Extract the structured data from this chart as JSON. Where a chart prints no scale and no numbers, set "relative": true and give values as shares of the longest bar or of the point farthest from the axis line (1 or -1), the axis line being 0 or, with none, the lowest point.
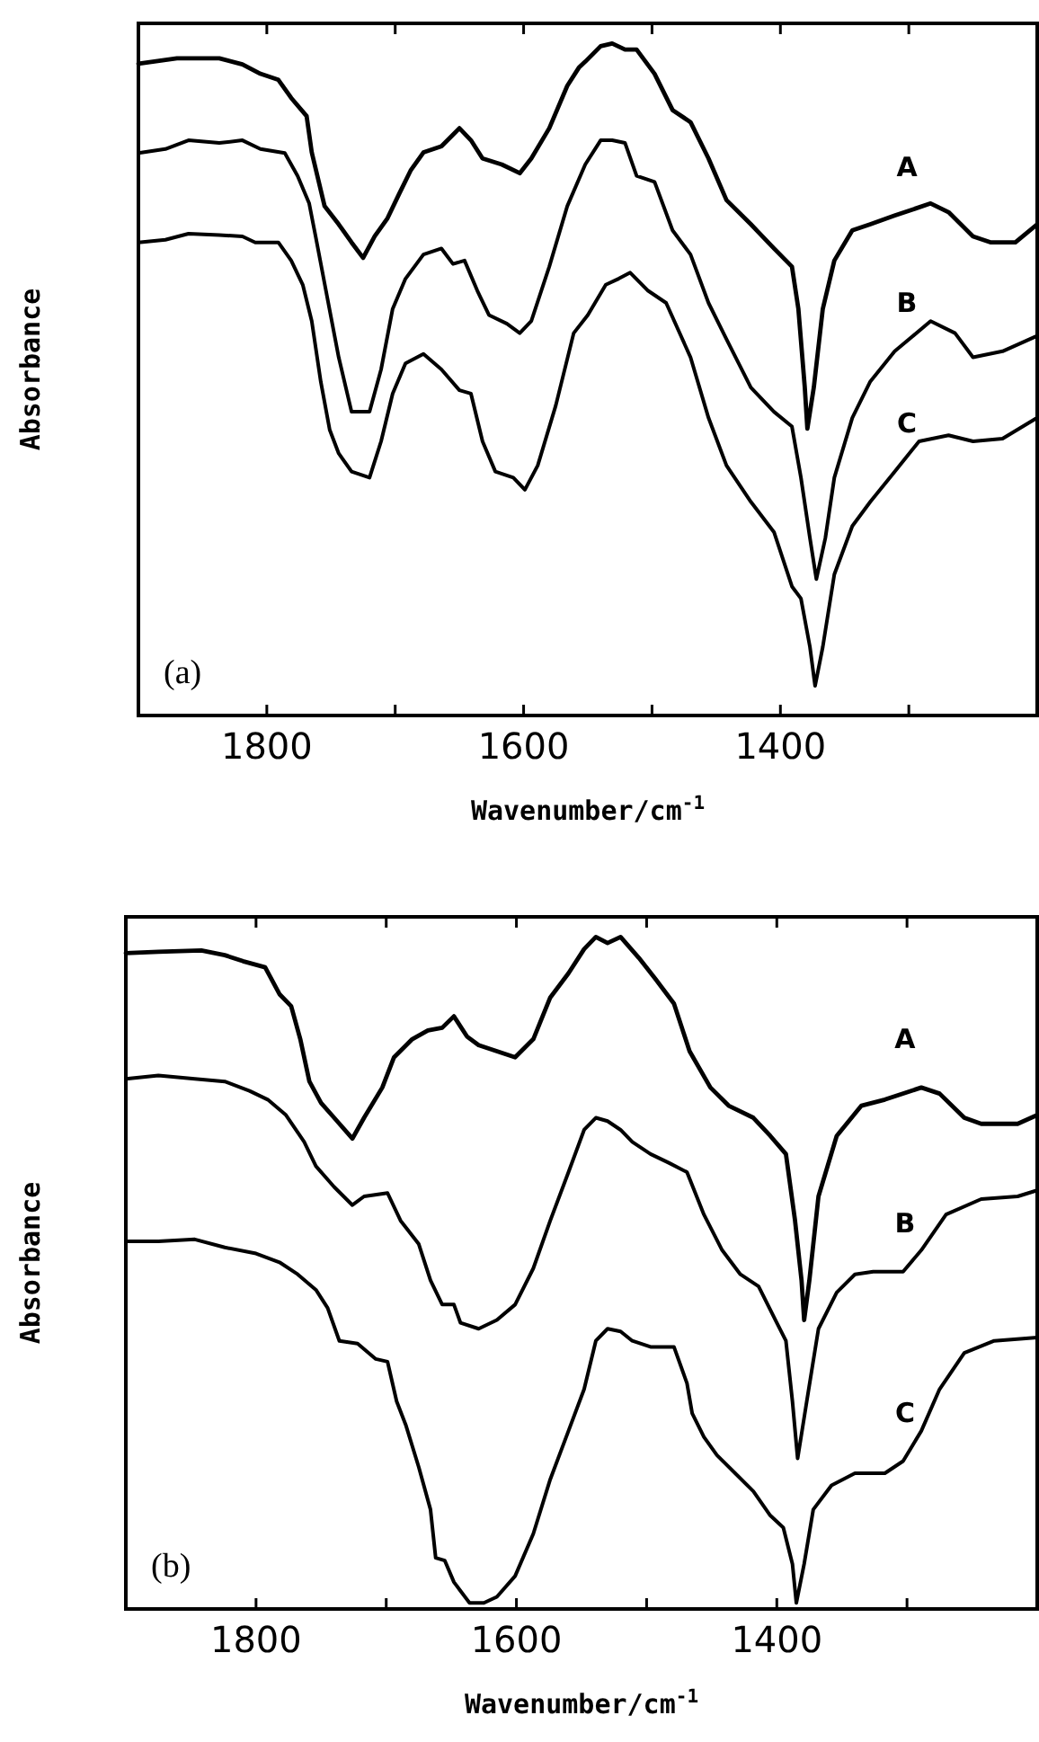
{
  "chart_data": [
    {
      "type": "line",
      "title": "(a)",
      "xlabel": "Wavenumber/cm$^{-1}$",
      "ylabel": "Absorbance",
      "relative": true,
      "xlim": [
        1900,
        1200
      ],
      "xticks": [
        1800,
        {
          "value": 1700,
          "label": null
        },
        1600,
        {
          "value": 1500,
          "label": null
        },
        1400,
        {
          "value": 1300,
          "label": null
        }
      ],
      "grid": false,
      "line_style": "solid",
      "marker": "none",
      "series": [
        {
          "name": "A",
          "color": "#000000",
          "x": [
            1900,
            1870,
            1837,
            1819,
            1805,
            1791,
            1781,
            1769,
            1765,
            1755,
            1744,
            1734,
            1725,
            1716,
            1706,
            1697,
            1688,
            1678,
            1664,
            1650,
            1641,
            1632,
            1617,
            1603,
            1594,
            1580,
            1566,
            1557,
            1552,
            1540,
            1531,
            1521,
            1512,
            1498,
            1484,
            1470,
            1456,
            1442,
            1423,
            1405,
            1391,
            1386,
            1381,
            1379,
            1374,
            1367,
            1358,
            1344,
            1330,
            1311,
            1283,
            1269,
            1250,
            1236,
            1217,
            1200
          ],
          "values": [
            0.97,
            0.978,
            0.978,
            0.969,
            0.955,
            0.946,
            0.919,
            0.892,
            0.838,
            0.758,
            0.731,
            0.704,
            0.681,
            0.713,
            0.74,
            0.776,
            0.811,
            0.838,
            0.847,
            0.874,
            0.856,
            0.829,
            0.82,
            0.807,
            0.829,
            0.874,
            0.937,
            0.964,
            0.973,
            0.996,
            1.0,
            0.991,
            0.991,
            0.955,
            0.901,
            0.883,
            0.829,
            0.767,
            0.731,
            0.695,
            0.668,
            0.605,
            0.488,
            0.427,
            0.488,
            0.605,
            0.677,
            0.722,
            0.731,
            0.744,
            0.762,
            0.749,
            0.713,
            0.704,
            0.704,
            0.731
          ]
        },
        {
          "name": "B",
          "color": "#000000",
          "x": [
            1900,
            1879,
            1861,
            1837,
            1819,
            1805,
            1786,
            1776,
            1767,
            1762,
            1753,
            1744,
            1734,
            1720,
            1711,
            1702,
            1692,
            1678,
            1664,
            1655,
            1646,
            1636,
            1627,
            1613,
            1603,
            1594,
            1580,
            1566,
            1552,
            1540,
            1531,
            1521,
            1512,
            1498,
            1484,
            1470,
            1456,
            1442,
            1423,
            1405,
            1391,
            1384,
            1377,
            1372,
            1365,
            1358,
            1344,
            1330,
            1311,
            1283,
            1264,
            1250,
            1227,
            1200
          ],
          "values": [
            0.837,
            0.843,
            0.856,
            0.852,
            0.856,
            0.843,
            0.837,
            0.803,
            0.762,
            0.713,
            0.623,
            0.533,
            0.452,
            0.452,
            0.515,
            0.605,
            0.65,
            0.686,
            0.695,
            0.672,
            0.677,
            0.632,
            0.596,
            0.583,
            0.569,
            0.587,
            0.668,
            0.758,
            0.82,
            0.856,
            0.856,
            0.852,
            0.803,
            0.794,
            0.722,
            0.686,
            0.614,
            0.56,
            0.488,
            0.452,
            0.43,
            0.354,
            0.264,
            0.203,
            0.264,
            0.354,
            0.443,
            0.497,
            0.542,
            0.587,
            0.569,
            0.533,
            0.542,
            0.565
          ]
        },
        {
          "name": "C",
          "color": "#000000",
          "x": [
            1900,
            1879,
            1861,
            1837,
            1819,
            1809,
            1791,
            1781,
            1772,
            1765,
            1758,
            1751,
            1744,
            1734,
            1720,
            1711,
            1702,
            1692,
            1678,
            1664,
            1650,
            1641,
            1632,
            1622,
            1608,
            1599,
            1589,
            1575,
            1561,
            1550,
            1536,
            1526,
            1517,
            1503,
            1489,
            1470,
            1456,
            1442,
            1423,
            1405,
            1391,
            1384,
            1377,
            1373,
            1367,
            1358,
            1344,
            1330,
            1311,
            1292,
            1269,
            1250,
            1227,
            1200
          ],
          "values": [
            0.704,
            0.708,
            0.717,
            0.715,
            0.713,
            0.704,
            0.704,
            0.677,
            0.641,
            0.587,
            0.497,
            0.425,
            0.39,
            0.363,
            0.354,
            0.408,
            0.479,
            0.524,
            0.538,
            0.515,
            0.484,
            0.479,
            0.408,
            0.363,
            0.354,
            0.336,
            0.372,
            0.461,
            0.569,
            0.596,
            0.641,
            0.65,
            0.659,
            0.632,
            0.614,
            0.533,
            0.443,
            0.372,
            0.318,
            0.273,
            0.192,
            0.174,
            0.102,
            0.044,
            0.102,
            0.21,
            0.282,
            0.318,
            0.363,
            0.408,
            0.417,
            0.408,
            0.412,
            0.443
          ]
        }
      ]
    },
    {
      "type": "line",
      "title": "(b)",
      "xlabel": "Wavenumber/cm$^{-1}$",
      "ylabel": "Absorbance",
      "relative": true,
      "xlim": [
        1900,
        1200
      ],
      "xticks": [
        1800,
        {
          "value": 1700,
          "label": null
        },
        1600,
        {
          "value": 1500,
          "label": null
        },
        1400,
        {
          "value": 1300,
          "label": null
        }
      ],
      "grid": false,
      "line_style": "solid",
      "marker": "none",
      "series": [
        {
          "name": "A",
          "color": "#000000",
          "x": [
            1900,
            1875,
            1842,
            1824,
            1810,
            1793,
            1782,
            1773,
            1766,
            1759,
            1750,
            1740,
            1726,
            1717,
            1703,
            1694,
            1680,
            1668,
            1657,
            1648,
            1638,
            1629,
            1615,
            1601,
            1587,
            1574,
            1560,
            1548,
            1539,
            1530,
            1520,
            1506,
            1493,
            1479,
            1467,
            1451,
            1437,
            1418,
            1405,
            1393,
            1386,
            1381,
            1379,
            1375,
            1368,
            1354,
            1335,
            1317,
            1289,
            1275,
            1256,
            1243,
            1215,
            1200
          ],
          "values": [
            0.976,
            0.978,
            0.98,
            0.973,
            0.964,
            0.955,
            0.915,
            0.897,
            0.848,
            0.785,
            0.753,
            0.731,
            0.7,
            0.731,
            0.776,
            0.821,
            0.848,
            0.861,
            0.865,
            0.882,
            0.852,
            0.839,
            0.83,
            0.821,
            0.848,
            0.91,
            0.946,
            0.982,
            1.0,
            0.991,
            1.0,
            0.969,
            0.937,
            0.901,
            0.83,
            0.776,
            0.749,
            0.731,
            0.704,
            0.677,
            0.578,
            0.489,
            0.43,
            0.489,
            0.614,
            0.704,
            0.749,
            0.758,
            0.776,
            0.767,
            0.731,
            0.722,
            0.722,
            0.735
          ]
        },
        {
          "name": "B",
          "color": "#000000",
          "x": [
            1900,
            1875,
            1847,
            1824,
            1805,
            1791,
            1777,
            1763,
            1754,
            1740,
            1726,
            1717,
            1699,
            1689,
            1675,
            1666,
            1657,
            1648,
            1643,
            1629,
            1615,
            1601,
            1587,
            1574,
            1560,
            1548,
            1539,
            1530,
            1520,
            1511,
            1497,
            1483,
            1469,
            1456,
            1442,
            1428,
            1414,
            1400,
            1393,
            1388,
            1384,
            1377,
            1368,
            1354,
            1340,
            1326,
            1303,
            1289,
            1270,
            1243,
            1215,
            1200
          ],
          "values": [
            0.789,
            0.794,
            0.789,
            0.785,
            0.771,
            0.758,
            0.735,
            0.695,
            0.659,
            0.628,
            0.601,
            0.614,
            0.619,
            0.578,
            0.543,
            0.489,
            0.453,
            0.453,
            0.426,
            0.417,
            0.43,
            0.453,
            0.507,
            0.578,
            0.65,
            0.713,
            0.731,
            0.726,
            0.713,
            0.695,
            0.677,
            0.664,
            0.65,
            0.587,
            0.534,
            0.498,
            0.48,
            0.426,
            0.399,
            0.309,
            0.224,
            0.309,
            0.417,
            0.471,
            0.498,
            0.502,
            0.502,
            0.534,
            0.587,
            0.61,
            0.614,
            0.623
          ]
        },
        {
          "name": "C",
          "color": "#000000",
          "x": [
            1900,
            1875,
            1847,
            1824,
            1800,
            1782,
            1768,
            1754,
            1745,
            1736,
            1722,
            1708,
            1699,
            1692,
            1685,
            1675,
            1666,
            1662,
            1655,
            1648,
            1636,
            1625,
            1615,
            1601,
            1587,
            1574,
            1560,
            1548,
            1539,
            1530,
            1520,
            1511,
            1497,
            1479,
            1469,
            1465,
            1456,
            1446,
            1432,
            1418,
            1405,
            1395,
            1388,
            1385,
            1379,
            1372,
            1358,
            1340,
            1317,
            1303,
            1289,
            1275,
            1256,
            1233,
            1200
          ],
          "values": [
            0.547,
            0.547,
            0.55,
            0.538,
            0.529,
            0.516,
            0.498,
            0.475,
            0.448,
            0.399,
            0.395,
            0.372,
            0.368,
            0.309,
            0.274,
            0.211,
            0.148,
            0.076,
            0.072,
            0.04,
            0.009,
            0.009,
            0.018,
            0.049,
            0.112,
            0.193,
            0.265,
            0.327,
            0.399,
            0.417,
            0.413,
            0.399,
            0.39,
            0.39,
            0.336,
            0.291,
            0.256,
            0.229,
            0.202,
            0.175,
            0.139,
            0.121,
            0.067,
            0.009,
            0.067,
            0.148,
            0.184,
            0.202,
            0.202,
            0.22,
            0.265,
            0.327,
            0.381,
            0.399,
            0.404
          ]
        }
      ]
    }
  ]
}
